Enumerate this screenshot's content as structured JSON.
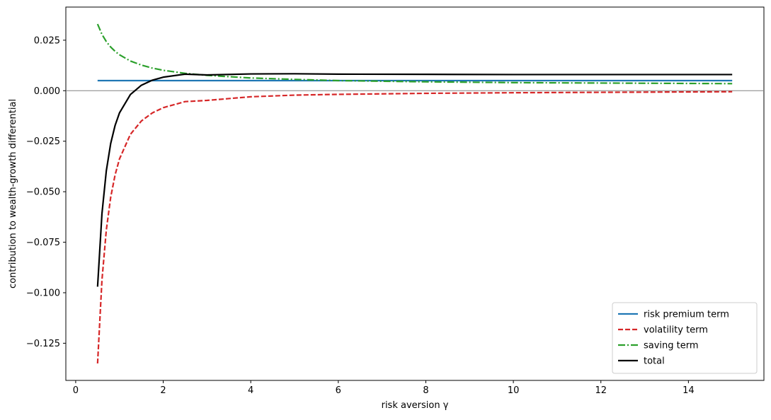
{
  "chart_data": {
    "type": "line",
    "xlabel": "risk aversion γ",
    "ylabel": "contribution to wealth-growth differential",
    "x": [
      0.5,
      0.6,
      0.7,
      0.8,
      0.9,
      1,
      1.25,
      1.5,
      1.75,
      2,
      2.5,
      3,
      4,
      5,
      6,
      8,
      10,
      12,
      15
    ],
    "series": [
      {
        "name": "risk premium term",
        "color": "#1f77b4",
        "dash": "solid",
        "values": [
          0.005,
          0.005,
          0.005,
          0.005,
          0.005,
          0.005,
          0.005,
          0.005,
          0.005,
          0.005,
          0.005,
          0.005,
          0.005,
          0.005,
          0.005,
          0.005,
          0.005,
          0.005,
          0.005
        ]
      },
      {
        "name": "volatility term",
        "color": "#d62728",
        "dash": "dashed",
        "values": [
          -0.135,
          -0.0938,
          -0.0689,
          -0.0527,
          -0.0417,
          -0.0338,
          -0.0216,
          -0.015,
          -0.011,
          -0.0084,
          -0.0054,
          -0.0048,
          -0.003,
          -0.0022,
          -0.0018,
          -0.0013,
          -0.001,
          -0.0008,
          -0.0005
        ]
      },
      {
        "name": "saving term",
        "color": "#2ca02c",
        "dash": "dashdot",
        "values": [
          0.033,
          0.0279,
          0.0243,
          0.0216,
          0.0195,
          0.0178,
          0.0147,
          0.0127,
          0.0112,
          0.0101,
          0.0086,
          0.0076,
          0.0063,
          0.0056,
          0.005,
          0.0044,
          0.004,
          0.0038,
          0.0035
        ]
      },
      {
        "name": "total",
        "color": "#000000",
        "dash": "solid",
        "values": [
          -0.097,
          -0.0609,
          -0.0396,
          -0.0261,
          -0.0172,
          -0.011,
          -0.0019,
          0.0027,
          0.0052,
          0.0067,
          0.0082,
          0.0078,
          0.0083,
          0.0084,
          0.0082,
          0.0081,
          0.008,
          0.008,
          0.008
        ]
      }
    ],
    "xlim": [
      -0.225,
      15.725
    ],
    "ylim": [
      -0.1434,
      0.0414
    ],
    "xticks": [
      0,
      2,
      4,
      6,
      8,
      10,
      12,
      14
    ],
    "yticks": [
      {
        "value": -0.125,
        "label": "−0.125"
      },
      {
        "value": -0.1,
        "label": "−0.100"
      },
      {
        "value": -0.075,
        "label": "−0.075"
      },
      {
        "value": -0.05,
        "label": "−0.050"
      },
      {
        "value": -0.025,
        "label": "−0.025"
      },
      {
        "value": 0,
        "label": "0.000"
      },
      0.025
    ],
    "axhline": 0,
    "legend": "lower right",
    "grid": false
  }
}
